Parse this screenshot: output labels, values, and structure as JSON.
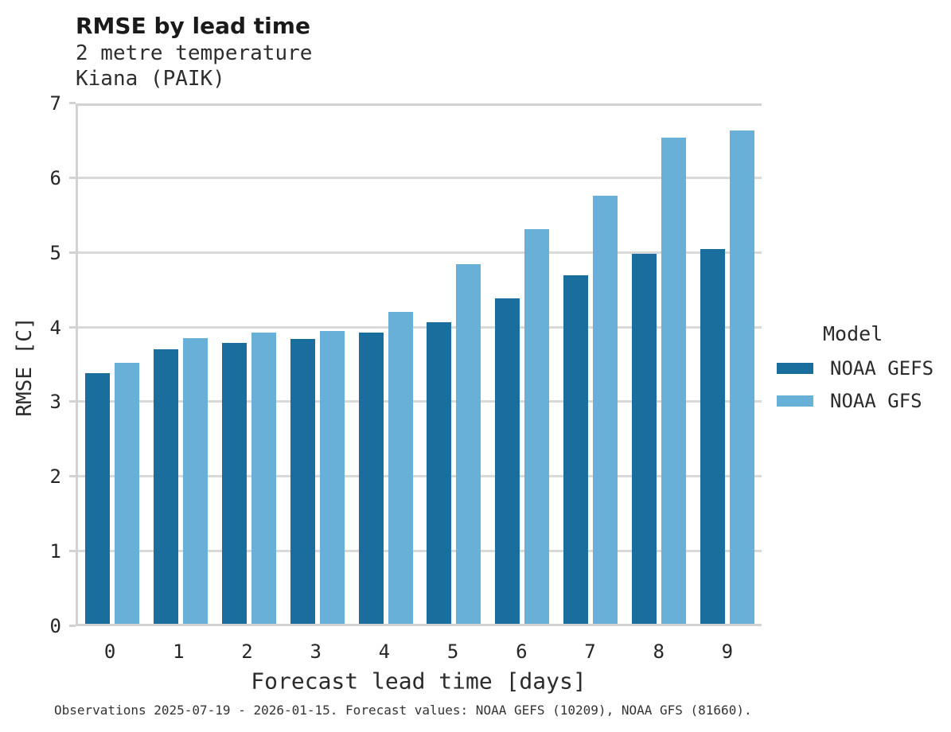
{
  "header": {
    "title": "RMSE by lead time",
    "subtitle_variable": "2 metre temperature",
    "subtitle_station": "Kiana (PAIK)"
  },
  "chart_data": {
    "type": "bar",
    "title": "RMSE by lead time",
    "subtitle": "2 metre temperature",
    "station": "Kiana (PAIK)",
    "xlabel": "Forecast lead time [days]",
    "ylabel": "RMSE [C]",
    "categories": [
      "0",
      "1",
      "2",
      "3",
      "4",
      "5",
      "6",
      "7",
      "8",
      "9"
    ],
    "series": [
      {
        "name": "NOAA GEFS",
        "color": "#1a6e9d",
        "values": [
          3.39,
          3.71,
          3.8,
          3.85,
          3.94,
          4.08,
          4.4,
          4.71,
          5.0,
          5.06
        ]
      },
      {
        "name": "NOAA GFS",
        "color": "#68b0d8",
        "values": [
          3.53,
          3.86,
          3.94,
          3.96,
          4.22,
          4.86,
          5.33,
          5.79,
          6.57,
          6.67
        ]
      }
    ],
    "ylim": [
      0,
      7
    ],
    "yticks": [
      0,
      1,
      2,
      3,
      4,
      5,
      6,
      7
    ],
    "grid": "horizontal",
    "legend": {
      "title": "Model",
      "position": "right"
    }
  },
  "footer": {
    "note": "Observations 2025-07-19 - 2026-01-15. Forecast values: NOAA GEFS (10209), NOAA GFS (81660)."
  },
  "colors": {
    "gefs_bar": "#1a6e9d",
    "gfs_bar": "#68b0d8",
    "gridline": "#d9d9d9",
    "axis_line": "#d2d2d2"
  }
}
